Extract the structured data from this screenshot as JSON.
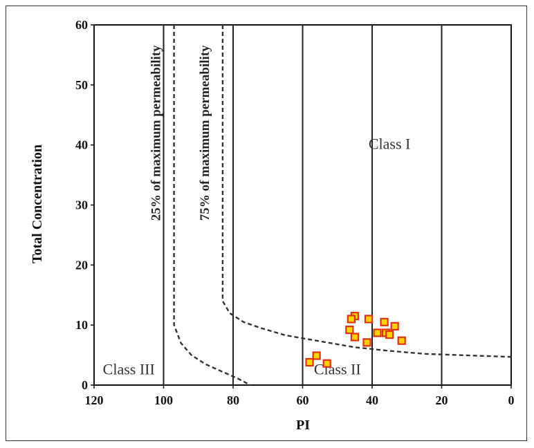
{
  "chart_data": {
    "type": "scatter",
    "title": "",
    "xlabel": "PI",
    "ylabel": "Total Concentration",
    "xlim": [
      120,
      0
    ],
    "ylim": [
      0,
      60
    ],
    "x_reversed": true,
    "x_ticks": [
      "120",
      "100",
      "80",
      "60",
      "40",
      "20",
      "0"
    ],
    "y_ticks": [
      "0",
      "10",
      "20",
      "30",
      "40",
      "50",
      "60"
    ],
    "vertical_gridlines_at": [
      100,
      80,
      60,
      40,
      20
    ],
    "grid": "vertical",
    "marker": {
      "shape": "square",
      "fill": "#FFD400",
      "stroke": "#E03010"
    },
    "series": [
      {
        "values": [
          {
            "x": 45,
            "y": 11.5
          },
          {
            "x": 46,
            "y": 11.0
          },
          {
            "x": 41,
            "y": 11.0
          },
          {
            "x": 36.5,
            "y": 10.5
          },
          {
            "x": 33.5,
            "y": 9.8
          },
          {
            "x": 46.5,
            "y": 9.2
          },
          {
            "x": 38.5,
            "y": 8.7
          },
          {
            "x": 36,
            "y": 8.7
          },
          {
            "x": 35,
            "y": 8.4
          },
          {
            "x": 45,
            "y": 8.0
          },
          {
            "x": 31.5,
            "y": 7.4
          },
          {
            "x": 41.5,
            "y": 7.1
          },
          {
            "x": 56,
            "y": 4.9
          },
          {
            "x": 58,
            "y": 3.8
          },
          {
            "x": 53,
            "y": 3.6
          }
        ]
      }
    ],
    "curves": [
      {
        "label": "25% of maximum permeability",
        "points": [
          [
            97,
            60
          ],
          [
            97,
            10
          ],
          [
            95,
            7
          ],
          [
            92,
            5
          ],
          [
            88,
            3.5
          ],
          [
            83,
            2.2
          ],
          [
            79,
            1.2
          ],
          [
            75,
            0
          ]
        ]
      },
      {
        "label": "75% of maximum permeability",
        "points": [
          [
            83,
            60
          ],
          [
            83,
            14
          ],
          [
            81,
            12
          ],
          [
            77,
            10.5
          ],
          [
            72,
            9.5
          ],
          [
            65,
            8.3
          ],
          [
            55,
            7.3
          ],
          [
            45,
            6.3
          ],
          [
            35,
            5.7
          ],
          [
            25,
            5.2
          ],
          [
            10,
            4.9
          ],
          [
            0,
            4.7
          ]
        ]
      }
    ],
    "regions": [
      {
        "label": "Class I",
        "x": 35,
        "y": 40
      },
      {
        "label": "Class II",
        "x": 50,
        "y": 2.5
      },
      {
        "label": "Class III",
        "x": 110,
        "y": 2.5
      }
    ]
  }
}
